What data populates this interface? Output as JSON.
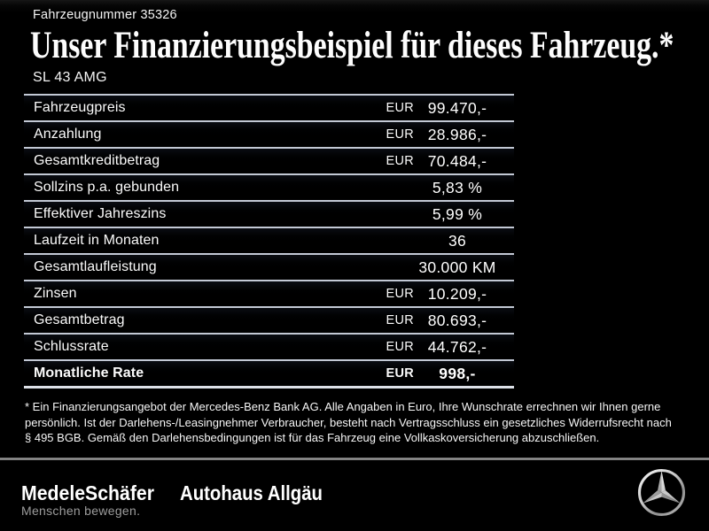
{
  "header": {
    "vehicle_number": "Fahrzeugnummer 35326",
    "title": "Unser Finanzierungsbeispiel für dieses Fahrzeug.*",
    "model": "SL 43 AMG"
  },
  "financing_table": {
    "rows": [
      {
        "label": "Fahrzeugpreis",
        "currency": "EUR",
        "value": "99.470,-",
        "bold": false
      },
      {
        "label": "Anzahlung",
        "currency": "EUR",
        "value": "28.986,-",
        "bold": false
      },
      {
        "label": "Gesamtkreditbetrag",
        "currency": "EUR",
        "value": "70.484,-",
        "bold": false
      },
      {
        "label": "Sollzins p.a. gebunden",
        "currency": "",
        "value": "5,83 %",
        "bold": false
      },
      {
        "label": "Effektiver Jahreszins",
        "currency": "",
        "value": "5,99 %",
        "bold": false
      },
      {
        "label": "Laufzeit in Monaten",
        "currency": "",
        "value": "36",
        "bold": false
      },
      {
        "label": "Gesamtlaufleistung",
        "currency": "",
        "value": "30.000 KM",
        "bold": false
      },
      {
        "label": "Zinsen",
        "currency": "EUR",
        "value": "10.209,-",
        "bold": false
      },
      {
        "label": "Gesamtbetrag",
        "currency": "EUR",
        "value": "80.693,-",
        "bold": false
      },
      {
        "label": "Schlussrate",
        "currency": "EUR",
        "value": "44.762,-",
        "bold": false
      },
      {
        "label": "Monatliche Rate",
        "currency": "EUR",
        "value": "998,-",
        "bold": true
      }
    ]
  },
  "footnote": {
    "lines": [
      "* Ein Finanzierungsangebot der Mercedes-Benz Bank AG. Alle Angaben in Euro, Ihre Wunschrate errechnen wir Ihnen gerne",
      "persönlich. Ist der Darlehens-/Leasingnehmer Verbraucher, besteht nach Vertragsschluss ein gesetzliches Widerrufsrecht nach",
      "§ 495 BGB. Gemäß den Darlehensbedingungen ist für das Fahrzeug eine Vollkaskoversicherung abzuschließen."
    ]
  },
  "footer": {
    "dealer_name": "MedeleSchäfer",
    "dealer_tagline": "Menschen bewegen.",
    "dealer_secondary": "Autohaus Allgäu",
    "brand_icon": "mercedes-star-icon"
  },
  "colors": {
    "background": "#000000",
    "text": "#ffffff",
    "table_line": "#c3c9d5",
    "divider": "#9a9a9a",
    "tagline_gray": "#9c9c9c"
  }
}
